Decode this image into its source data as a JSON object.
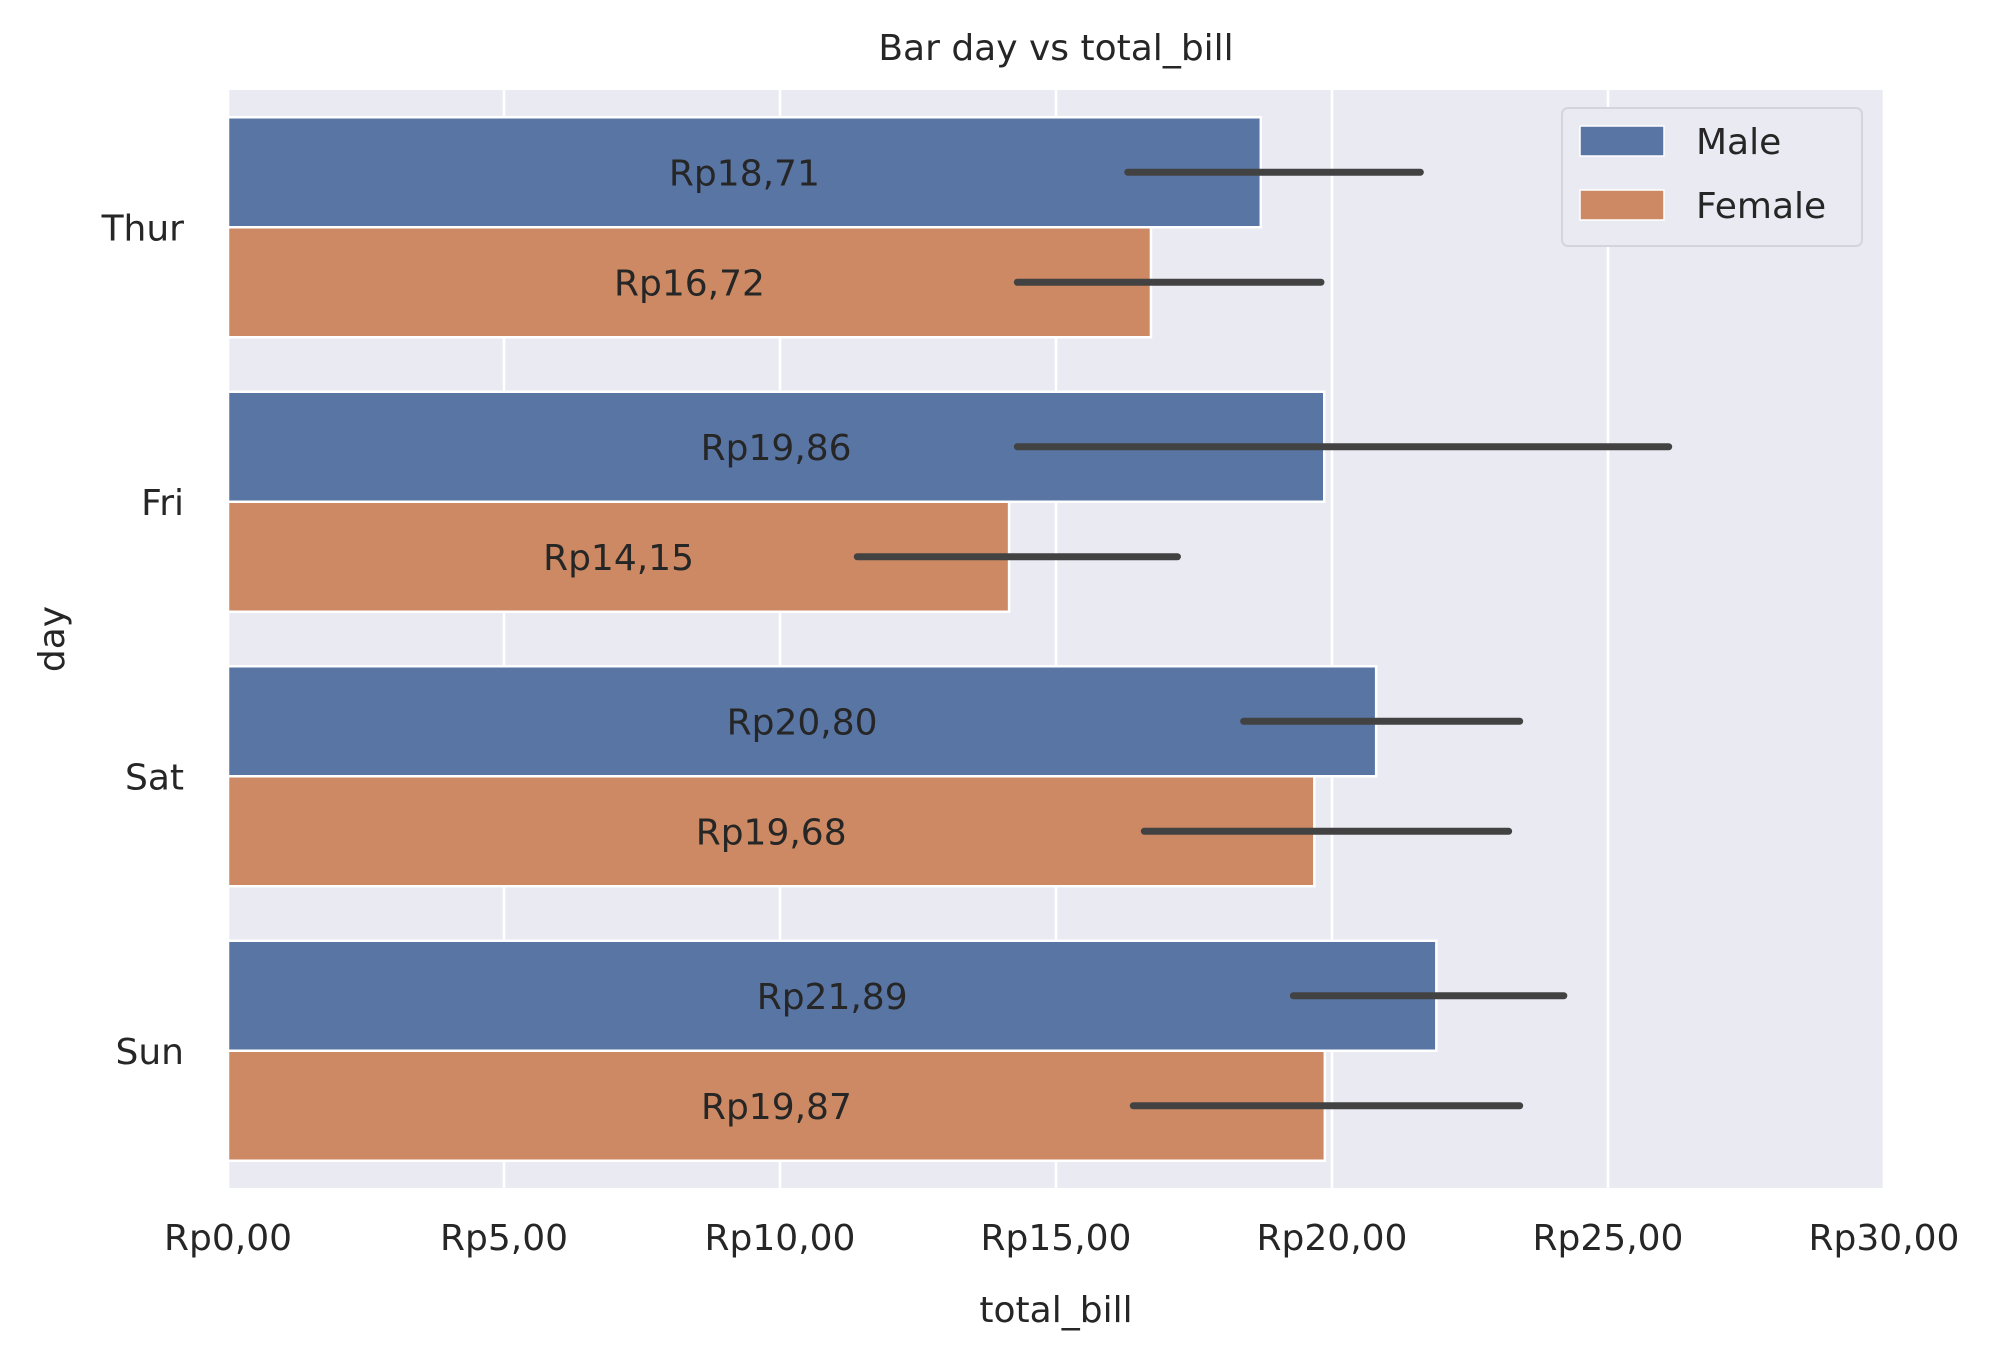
{
  "chart_data": {
    "type": "bar",
    "orientation": "horizontal",
    "title": "Bar day vs total_bill",
    "xlabel": "total_bill",
    "ylabel": "day",
    "categories": [
      "Thur",
      "Fri",
      "Sat",
      "Sun"
    ],
    "xlim": [
      0,
      30
    ],
    "x_ticks": [
      0,
      5,
      10,
      15,
      20,
      25,
      30
    ],
    "x_tick_labels": [
      "Rp0,00",
      "Rp5,00",
      "Rp10,00",
      "Rp15,00",
      "Rp20,00",
      "Rp25,00",
      "Rp30,00"
    ],
    "grid": true,
    "legend_position": "top-right",
    "series": [
      {
        "name": "Male",
        "color": "#5875a4",
        "values": [
          18.71,
          19.86,
          20.8,
          21.89
        ],
        "labels": [
          "Rp18,71",
          "Rp19,86",
          "Rp20,80",
          "Rp21,89"
        ],
        "error_low": [
          16.3,
          14.3,
          18.4,
          19.3
        ],
        "error_high": [
          21.6,
          26.1,
          23.4,
          24.2
        ]
      },
      {
        "name": "Female",
        "color": "#cc8963",
        "values": [
          16.72,
          14.15,
          19.68,
          19.87
        ],
        "labels": [
          "Rp16,72",
          "Rp14,15",
          "Rp19,68",
          "Rp19,87"
        ],
        "error_low": [
          14.3,
          11.4,
          16.6,
          16.4
        ],
        "error_high": [
          19.8,
          17.2,
          23.2,
          23.4
        ]
      }
    ]
  }
}
